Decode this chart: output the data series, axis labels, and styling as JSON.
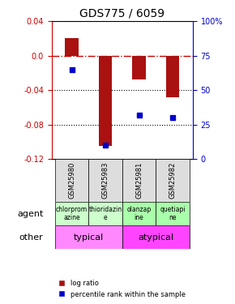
{
  "title": "GDS775 / 6059",
  "samples": [
    "GSM25980",
    "GSM25983",
    "GSM25981",
    "GSM25982"
  ],
  "log_ratios": [
    0.02,
    -0.105,
    -0.028,
    -0.048
  ],
  "percentile_ranks": [
    65,
    10,
    32,
    30
  ],
  "agents": [
    "chlorprom\nazine",
    "thioridazin\ne",
    "olanzap\nine",
    "quetiapi\nne"
  ],
  "agent_colors": [
    "#ccffcc",
    "#ccffcc",
    "#aaffaa",
    "#aaffaa"
  ],
  "other_typical": "typical",
  "other_atypical": "atypical",
  "typical_color": "#ff88ff",
  "atypical_color": "#ff44ff",
  "bar_color": "#aa1111",
  "dot_color": "#0000cc",
  "dashed_line_color": "#cc0000",
  "left_axis_color": "#cc0000",
  "right_axis_color": "#0000cc",
  "yticks_left": [
    0.04,
    0.0,
    -0.04,
    -0.08,
    -0.12
  ],
  "yticks_right": [
    100,
    75,
    50,
    25,
    0
  ],
  "bar_width": 0.4
}
